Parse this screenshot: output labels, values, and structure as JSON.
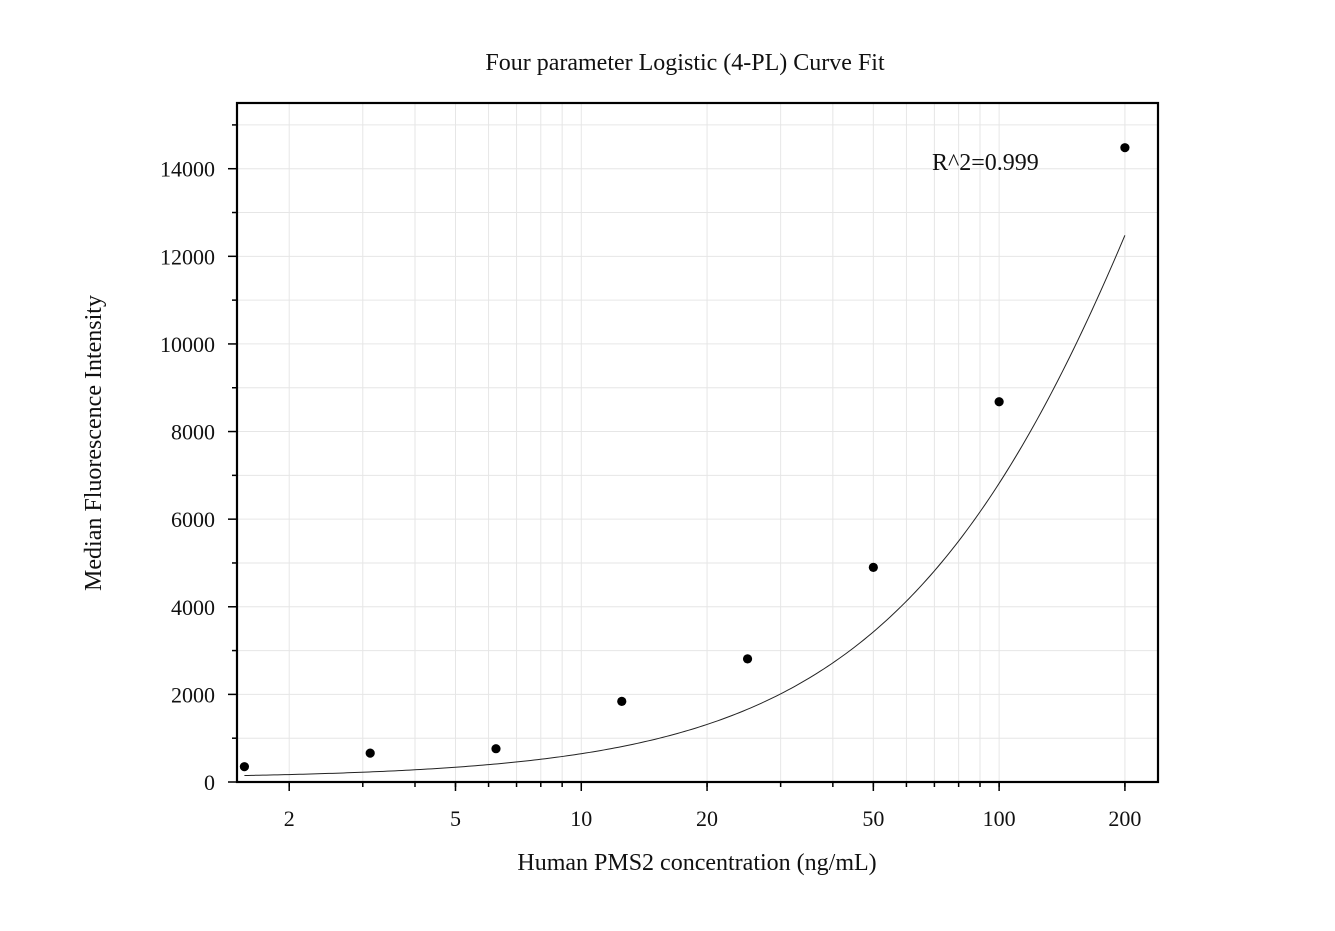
{
  "chart_data": {
    "type": "scatter",
    "title": "Four parameter Logistic (4-PL) Curve Fit",
    "xlabel": "Human PMS2 concentration (ng/mL)",
    "ylabel": "Median Fluorescence Intensity",
    "x_scale": "log",
    "xlim": [
      1.5,
      240
    ],
    "ylim": [
      0,
      15500
    ],
    "x_ticks": [
      2,
      5,
      10,
      20,
      50,
      100,
      200
    ],
    "x_tick_labels": [
      "2",
      "5",
      "10",
      "20",
      "50",
      "100",
      "200"
    ],
    "y_ticks": [
      0,
      2000,
      4000,
      6000,
      8000,
      10000,
      12000,
      14000
    ],
    "y_tick_labels": [
      "0",
      "2000",
      "4000",
      "6000",
      "8000",
      "10000",
      "12000",
      "14000"
    ],
    "grid": true,
    "annotation": "R^2=0.999",
    "series": [
      {
        "points": [
          {
            "x": 1.5625,
            "y": 350
          },
          {
            "x": 3.125,
            "y": 660
          },
          {
            "x": 6.25,
            "y": 760
          },
          {
            "x": 12.5,
            "y": 1840
          },
          {
            "x": 25,
            "y": 2810
          },
          {
            "x": 50,
            "y": 4900
          },
          {
            "x": 100,
            "y": 8680
          },
          {
            "x": 200,
            "y": 14480
          }
        ]
      }
    ],
    "fit_curve": {
      "model": "4PL",
      "A": 80,
      "B": 1.15,
      "C": 400,
      "D": 40000,
      "x_range": [
        1.5625,
        200
      ]
    }
  }
}
